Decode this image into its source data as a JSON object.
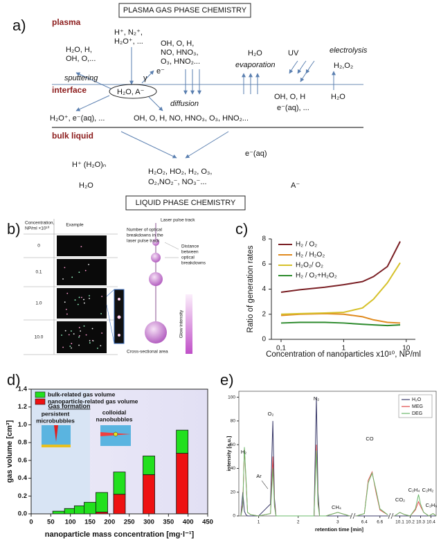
{
  "panel_a": {
    "label": "a)",
    "top_box": "PLASMA GAS PHASE CHEMISTRY",
    "bottom_box": "LIQUID PHASE CHEMISTRY",
    "zones": [
      "plasma",
      "interface",
      "bulk liquid"
    ],
    "texts": [
      "H₂O, H,",
      "OH, O,...",
      "H⁺, N₂⁺,",
      "H₂O⁺, ...",
      "OH, O, H,",
      "NO, HNO₃,",
      "O₃, HNO₂...",
      "H₂O",
      "evaporation",
      "UV",
      "electrolysis",
      "H₂,O₂",
      "sputtering",
      "e⁻",
      "γ",
      "H₂O, A⁻",
      "diffusion",
      "OH, O, H",
      "e⁻(aq), ...",
      "H₂O",
      "H₂O⁺, e⁻(aq), ...",
      "OH, O, H, NO, HNO₃, O₃, HNO₂...",
      "H⁺ (H₂O)ₙ",
      "H₂O₂, HO₂, H₂, O₃,",
      "O₂,NO₂⁻, NO₃⁻...",
      "e⁻(aq)",
      "H₂O",
      "A⁻"
    ]
  },
  "panel_b": {
    "label": "b)",
    "header_concentration": [
      "Concentration,",
      "NP/ml ×10¹⁰"
    ],
    "header_example": "Example",
    "rows": [
      "0",
      "0.1",
      "1.0",
      "10.0"
    ],
    "track": "Laser pulse track",
    "count": [
      "Number of optical",
      "breakdowns in the",
      "laser pulse track"
    ],
    "distance": [
      "Distance",
      "between",
      "optical",
      "breakdowns"
    ],
    "glow": "Glow intensity",
    "area": "Cross-sectional area"
  },
  "chart_data": [
    {
      "type": "line",
      "panel_label": "c)",
      "y_label": "Ratio of generation rates",
      "x_label": "Concentration of nanoparticles x10¹⁰, NP/ml",
      "x_log": true,
      "x": [
        0.1,
        0.2,
        0.5,
        1,
        2,
        3,
        5,
        8
      ],
      "xlim": [
        0.07,
        14
      ],
      "xticks": [
        {
          "value": 0.1,
          "label": "0,1"
        },
        1,
        10
      ],
      "ylim": [
        0,
        8
      ],
      "yticks": [
        0,
        2,
        4,
        6,
        8
      ],
      "legend": "upper left",
      "series": [
        {
          "name": "H₂ / O₂",
          "color": "#7a1f24",
          "values": [
            3.75,
            3.95,
            4.15,
            4.35,
            4.6,
            5.0,
            5.8,
            7.8
          ]
        },
        {
          "name": "H₂ / H₂O₂",
          "color": "#e08a1e",
          "values": [
            1.9,
            2.0,
            2.05,
            2.0,
            1.8,
            1.55,
            1.35,
            1.3
          ]
        },
        {
          "name": "H₂O₂/ O₂",
          "color": "#d6c12a",
          "values": [
            2.0,
            2.05,
            2.1,
            2.15,
            2.5,
            3.2,
            4.5,
            6.1
          ]
        },
        {
          "name": "H₂ / O₂+H₂O₂",
          "color": "#2c8a2c",
          "values": [
            1.3,
            1.35,
            1.35,
            1.3,
            1.2,
            1.15,
            1.1,
            1.15
          ]
        }
      ]
    },
    {
      "type": "stacked_bar",
      "panel_label": "d)",
      "y_label": "gas volume [cm³]",
      "x_label": "nanoparticle mass concentration [mg·l⁻¹]",
      "x": [
        70,
        100,
        125,
        150,
        180,
        225,
        300,
        385
      ],
      "xlim": [
        0,
        450
      ],
      "xticks": [
        0,
        50,
        100,
        150,
        200,
        250,
        300,
        350,
        400,
        450
      ],
      "ylim": [
        0,
        1.4
      ],
      "yticks": [
        {
          "value": 0,
          "label": "0.0"
        },
        0.2,
        0.4,
        0.6,
        0.8,
        {
          "value": 1,
          "label": "1.0"
        },
        1.2,
        1.4
      ],
      "legend": "upper left",
      "series": [
        {
          "name": "bulk-related gas volume",
          "color": "#22e01e",
          "values": [
            0.03,
            0.06,
            0.09,
            0.13,
            0.22,
            0.25,
            0.21,
            0.26
          ]
        },
        {
          "name": "nanoparticle-related gas volume",
          "color": "#ee1111",
          "values": [
            0,
            0,
            0,
            0,
            0.02,
            0.22,
            0.44,
            0.68
          ]
        }
      ],
      "annotation_title": "Gas formation",
      "annotation_left": [
        "persistent",
        "microbubbles"
      ],
      "annotation_right": [
        "colloidal",
        "nanobubbles"
      ]
    },
    {
      "type": "chromatogram",
      "panel_label": "e)",
      "y_label": "intensity [a.u.]",
      "x_label": "retention time [min]",
      "ylim": [
        0,
        105
      ],
      "yticks": [
        0,
        20,
        40,
        60,
        80,
        100
      ],
      "legend": "upper right",
      "x_segments": [
        {
          "xlim": [
            0.5,
            3.3
          ],
          "xticks": [
            1,
            2,
            3
          ],
          "x": [
            0.55,
            0.6,
            0.64,
            0.68,
            0.72,
            0.8,
            1.0,
            1.3,
            1.36,
            1.4,
            1.44,
            1.6,
            2.0,
            2.4,
            2.46,
            2.5,
            2.54,
            2.7,
            3.0,
            3.3
          ]
        },
        {
          "xlim": [
            6.3,
            6.7
          ],
          "xticks": [
            6.4,
            6.6
          ],
          "x": [
            6.3,
            6.4,
            6.45,
            6.5,
            6.55,
            6.6,
            6.7
          ]
        },
        {
          "xlim": [
            10.05,
            10.45
          ],
          "xticks": [
            10.1,
            10.2,
            10.3,
            10.4
          ],
          "x": [
            10.05,
            10.1,
            10.15,
            10.2,
            10.25,
            10.28,
            10.3,
            10.33,
            10.38,
            10.42,
            10.45
          ]
        }
      ],
      "series": [
        {
          "name": "H₂O",
          "color": "#3a3a6a",
          "values": [
            [
              0,
              20,
              4,
              1,
              0,
              0,
              0,
              10,
              80,
              15,
              0,
              0,
              0,
              0,
              100,
              20,
              0,
              0,
              0,
              0
            ],
            [
              0,
              0,
              0,
              0,
              0,
              0,
              0
            ],
            [
              0,
              0,
              0,
              0,
              0,
              0,
              0,
              0,
              0,
              0,
              0
            ]
          ]
        },
        {
          "name": "MEG",
          "color": "#e04a4a",
          "values": [
            [
              0,
              10,
              57,
              30,
              3,
              1,
              0,
              2,
              50,
              10,
              0,
              0,
              0,
              0,
              60,
              12,
              0,
              0,
              3,
              0
            ],
            [
              0,
              2,
              30,
              37,
              20,
              5,
              1
            ],
            [
              0,
              3,
              1,
              0,
              5,
              12,
              8,
              3,
              0,
              2,
              0
            ]
          ]
        },
        {
          "name": "DEG",
          "color": "#6ab86a",
          "values": [
            [
              0,
              8,
              58,
              32,
              3,
              1,
              0,
              2,
              40,
              8,
              0,
              0,
              0,
              0,
              55,
              10,
              0,
              0,
              3,
              0
            ],
            [
              0,
              2,
              28,
              36,
              22,
              6,
              1
            ],
            [
              0,
              3,
              1,
              0,
              6,
              18,
              10,
              3,
              0,
              2,
              0
            ]
          ]
        }
      ],
      "peak_labels": [
        "H₂",
        "Ar",
        "O₂",
        "N₂",
        "CH₄",
        "CO",
        "CO₂",
        "C₂H₄",
        "C₂H₂",
        "C₂H₆"
      ]
    }
  ]
}
